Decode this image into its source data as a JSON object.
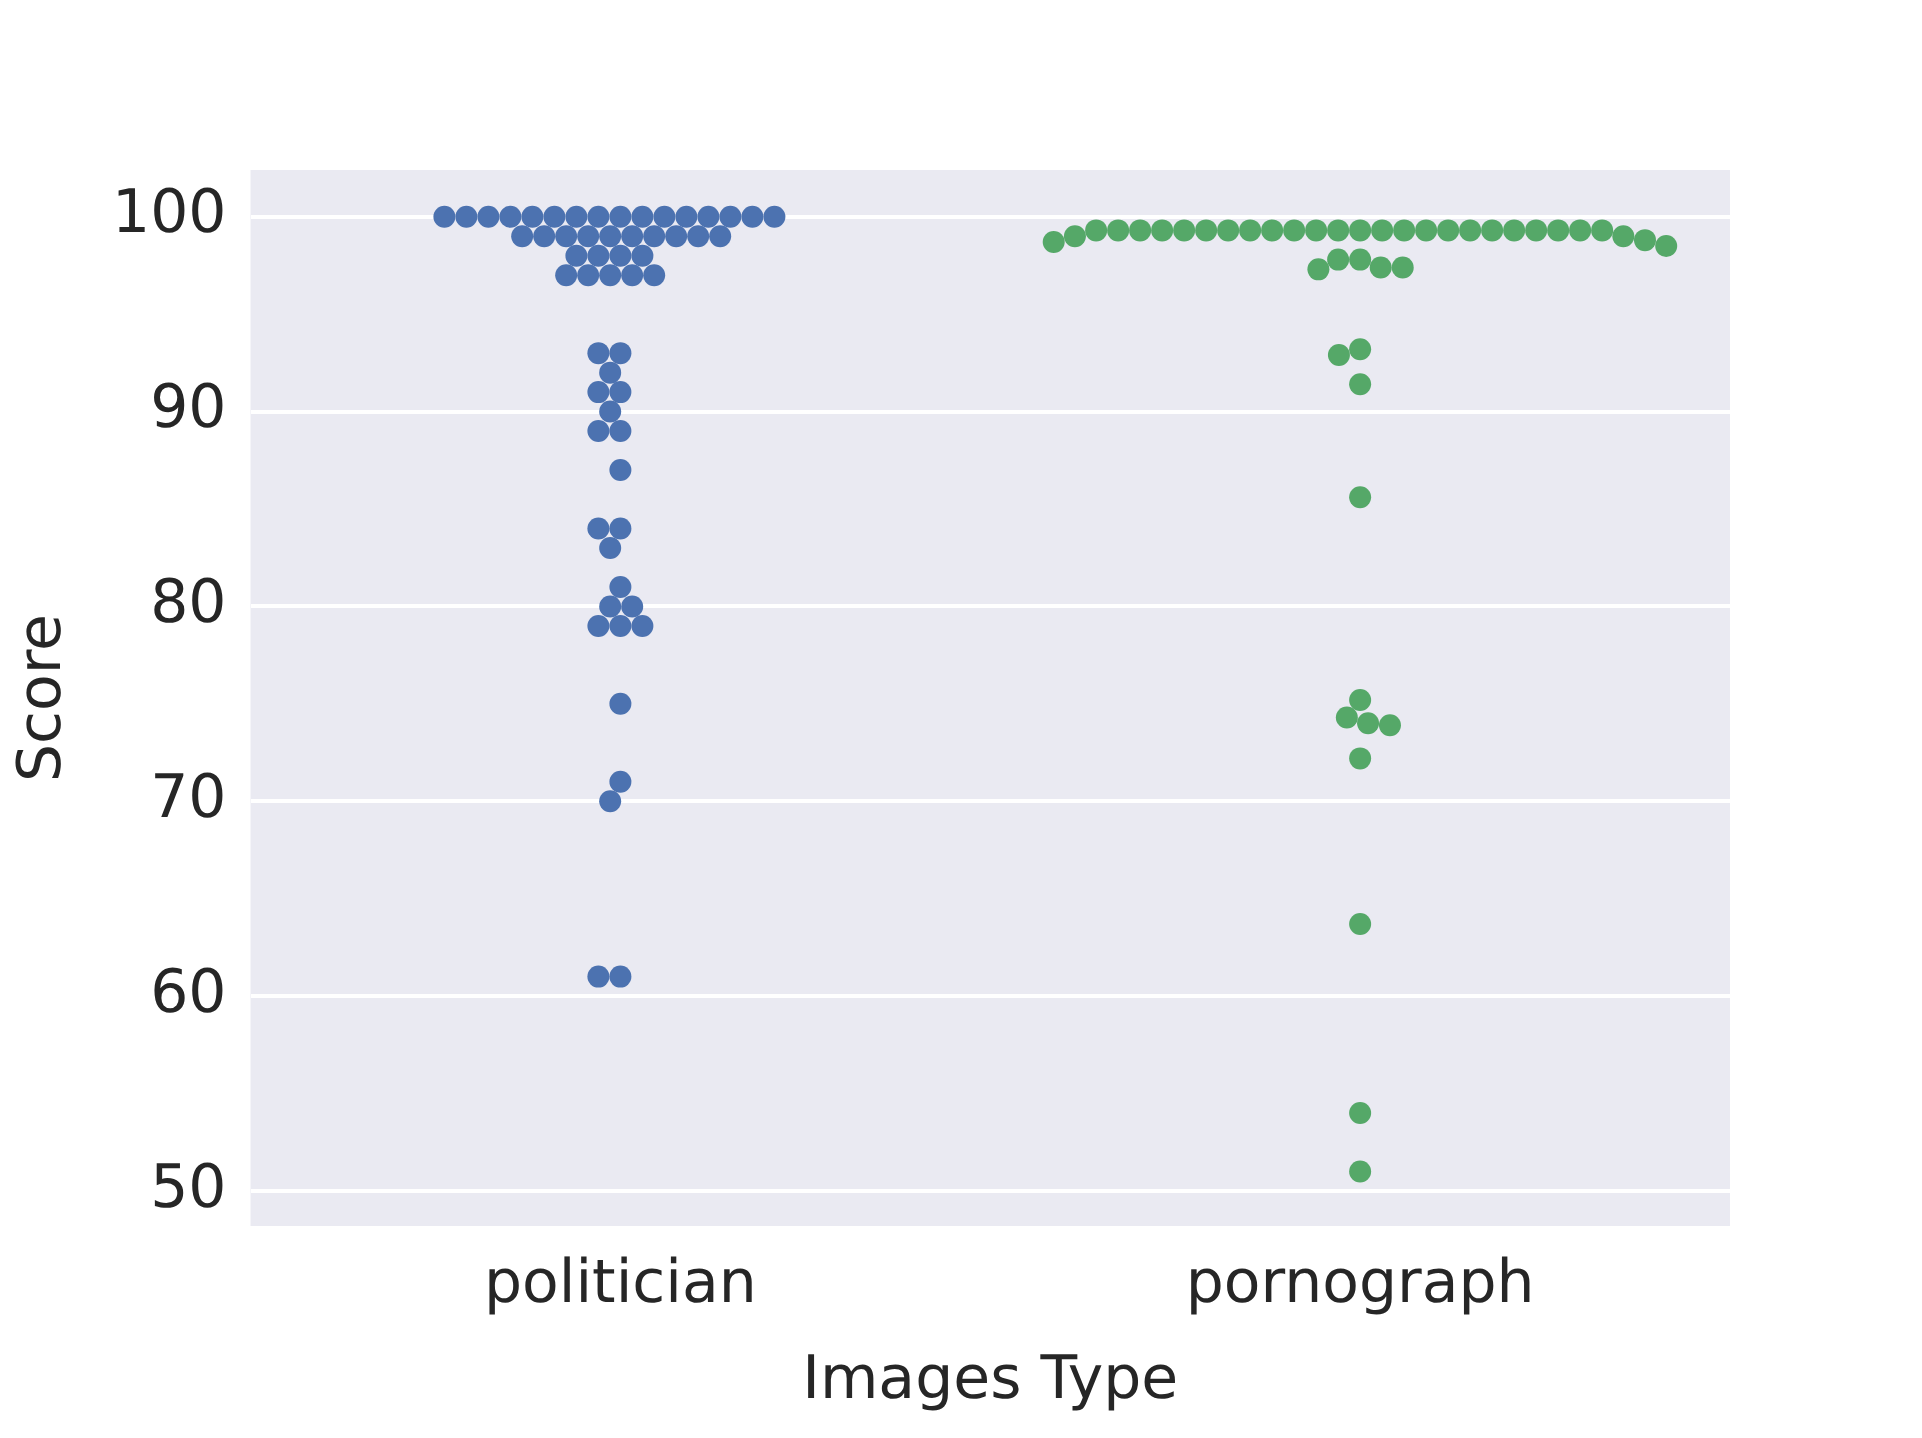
{
  "chart_data": {
    "type": "scatter",
    "xlabel": "Images Type",
    "ylabel": "Score",
    "categories": [
      "politician",
      "pornograph"
    ],
    "ylim": [
      48.2,
      102.4
    ],
    "yticks": [
      50,
      60,
      70,
      80,
      90,
      100
    ],
    "grid": "y",
    "marker": "circle",
    "legend": false,
    "series": [
      {
        "color": "#4c72b0",
        "x": [
          "politician",
          "politician",
          "politician",
          "politician",
          "politician",
          "politician",
          "politician",
          "politician",
          "politician",
          "politician",
          "politician",
          "politician",
          "politician",
          "politician",
          "politician",
          "politician",
          "politician",
          "politician",
          "politician",
          "politician",
          "politician",
          "politician",
          "politician",
          "politician",
          "politician",
          "politician",
          "politician",
          "politician",
          "politician",
          "politician",
          "politician",
          "politician",
          "politician",
          "politician",
          "politician",
          "politician",
          "politician",
          "politician",
          "politician",
          "politician",
          "politician",
          "politician",
          "politician",
          "politician",
          "politician",
          "politician",
          "politician",
          "politician",
          "politician",
          "politician",
          "politician",
          "politician",
          "politician",
          "politician",
          "politician",
          "politician",
          "politician",
          "politician"
        ],
        "values": [
          100,
          100,
          100,
          100,
          100,
          100,
          100,
          100,
          100,
          100,
          100,
          100,
          100,
          100,
          100,
          100,
          99,
          99,
          99,
          99,
          99,
          99,
          99,
          99,
          99,
          99,
          98,
          98,
          98,
          98,
          97,
          97,
          97,
          97,
          97,
          93,
          93,
          92,
          91,
          91,
          90,
          89,
          89,
          87,
          84,
          84,
          83,
          81,
          80,
          80,
          79,
          79,
          79,
          75,
          71,
          70,
          61,
          61
        ]
      },
      {
        "color": "#55a868",
        "x": [
          "pornograph",
          "pornograph",
          "pornograph",
          "pornograph",
          "pornograph",
          "pornograph",
          "pornograph",
          "pornograph",
          "pornograph",
          "pornograph",
          "pornograph",
          "pornograph",
          "pornograph",
          "pornograph",
          "pornograph",
          "pornograph",
          "pornograph",
          "pornograph",
          "pornograph",
          "pornograph",
          "pornograph",
          "pornograph",
          "pornograph",
          "pornograph",
          "pornograph",
          "pornograph",
          "pornograph",
          "pornograph",
          "pornograph",
          "pornograph",
          "pornograph",
          "pornograph",
          "pornograph",
          "pornograph",
          "pornograph",
          "pornograph",
          "pornograph",
          "pornograph",
          "pornograph",
          "pornograph",
          "pornograph",
          "pornograph",
          "pornograph",
          "pornograph",
          "pornograph",
          "pornograph"
        ],
        "values": [
          99.3,
          99.3,
          99.3,
          99.3,
          99.3,
          99.3,
          99.3,
          99.3,
          99.3,
          99.3,
          99.3,
          99.3,
          99.3,
          99.3,
          99.3,
          99.3,
          99.3,
          99.3,
          99.3,
          99.3,
          99.3,
          99.3,
          99.3,
          99.3,
          99.0,
          99.0,
          98.8,
          98.7,
          98.5,
          97.8,
          97.8,
          97.4,
          97.4,
          97.3,
          93.2,
          92.9,
          91.4,
          85.6,
          75.2,
          74.3,
          74.0,
          73.9,
          72.2,
          63.7,
          54.0,
          51.0
        ]
      }
    ]
  }
}
